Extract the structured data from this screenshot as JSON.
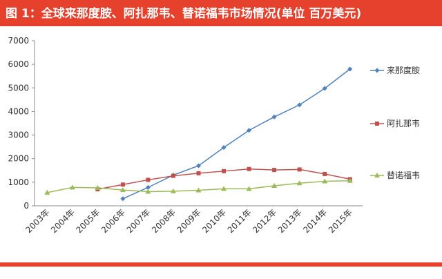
{
  "chart_data": {
    "type": "line",
    "title": "图 1：全球来那度胺、阿扎那韦、替诺福韦市场情况(单位  百万美元)",
    "categories": [
      "2003年",
      "2004年",
      "2005年",
      "2006年",
      "2007年",
      "2008年",
      "2009年",
      "2010年",
      "2011年",
      "2012年",
      "2013年",
      "2014年",
      "2015年"
    ],
    "series": [
      {
        "name": "来那度胺",
        "color": "#4f81bd",
        "marker": "diamond",
        "values": [
          null,
          null,
          null,
          300,
          780,
          1300,
          1700,
          2470,
          3200,
          3770,
          4280,
          4980,
          5800
        ]
      },
      {
        "name": "阿扎那韦",
        "color": "#c0504d",
        "marker": "square",
        "values": [
          null,
          null,
          700,
          900,
          1100,
          1270,
          1380,
          1470,
          1560,
          1520,
          1540,
          1350,
          1130
        ]
      },
      {
        "name": "替诺福韦",
        "color": "#9bbb59",
        "marker": "triangle",
        "values": [
          560,
          780,
          760,
          670,
          600,
          620,
          660,
          720,
          720,
          850,
          960,
          1040,
          1060
        ]
      }
    ],
    "ylim": [
      0,
      7000
    ],
    "yticks": [
      0,
      1000,
      2000,
      3000,
      4000,
      5000,
      6000,
      7000
    ],
    "grid": false
  }
}
